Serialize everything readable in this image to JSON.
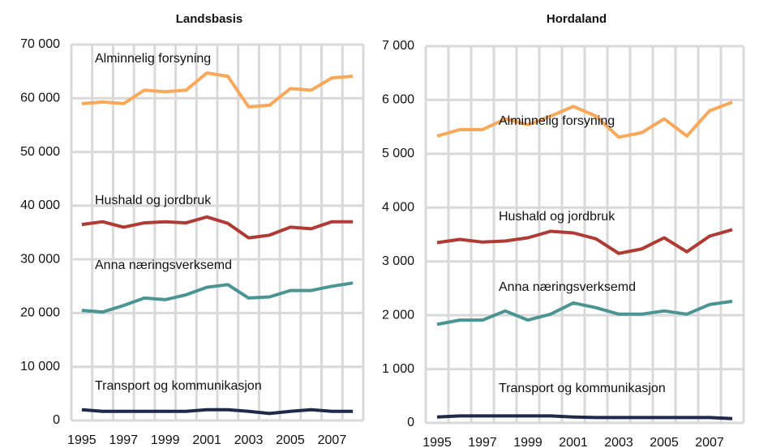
{
  "chart_data": [
    {
      "type": "line",
      "title": "Landsbasis",
      "categories": [
        "1995",
        null,
        "1997",
        null,
        "1999",
        null,
        "2001",
        null,
        "2003",
        null,
        "2005",
        null,
        "2007",
        null
      ],
      "ylim": [
        0,
        70000
      ],
      "yticks": [
        0,
        {
          "value": 10000,
          "label": "10 000"
        },
        {
          "value": 20000,
          "label": "20 000"
        },
        {
          "value": 30000,
          "label": "30 000"
        },
        {
          "value": 40000,
          "label": "40 000"
        },
        {
          "value": 50000,
          "label": "50 000"
        },
        {
          "value": 60000,
          "label": "60 000"
        },
        {
          "value": 70000,
          "label": "70 000"
        }
      ],
      "grid": true,
      "series": [
        {
          "name": "Alminnelig forsyning",
          "color": "#f9a85a",
          "values": [
            59000,
            59300,
            59000,
            61500,
            61200,
            61500,
            64700,
            64100,
            58400,
            58700,
            61800,
            61500,
            63800,
            64100
          ]
        },
        {
          "name": "Hushald og jordbruk",
          "color": "#b03a34",
          "values": [
            36500,
            37000,
            36000,
            36800,
            37000,
            36800,
            37900,
            36700,
            34000,
            34500,
            36000,
            35700,
            37000,
            37000
          ]
        },
        {
          "name": "Anna næringsverksemd",
          "color": "#4a9593",
          "values": [
            20500,
            20200,
            21400,
            22800,
            22500,
            23400,
            24800,
            25300,
            22800,
            23000,
            24200,
            24200,
            25000,
            25600
          ]
        },
        {
          "name": "Transport og kommunikasjon",
          "color": "#1e2a4a",
          "values": [
            2000,
            1700,
            1700,
            1700,
            1700,
            1700,
            2000,
            2000,
            1700,
            1300,
            1700,
            2000,
            1700,
            1700
          ]
        }
      ]
    },
    {
      "type": "line",
      "title": "Hordaland",
      "categories": [
        "1995",
        null,
        "1997",
        null,
        "1999",
        null,
        "2001",
        null,
        "2003",
        null,
        "2005",
        null,
        "2007",
        null
      ],
      "ylim": [
        0,
        7000
      ],
      "yticks": [
        0,
        {
          "value": 1000,
          "label": "1 000"
        },
        {
          "value": 2000,
          "label": "2 000"
        },
        {
          "value": 3000,
          "label": "3 000"
        },
        {
          "value": 4000,
          "label": "4 000"
        },
        {
          "value": 5000,
          "label": "5 000"
        },
        {
          "value": 6000,
          "label": "6 000"
        },
        {
          "value": 7000,
          "label": "7 000"
        }
      ],
      "grid": true,
      "series": [
        {
          "name": "Alminnelig forsyning",
          "color": "#f9a85a",
          "values": [
            5330,
            5450,
            5450,
            5650,
            5540,
            5700,
            5880,
            5700,
            5310,
            5390,
            5650,
            5330,
            5800,
            5960
          ]
        },
        {
          "name": "Hushald og jordbruk",
          "color": "#b03a34",
          "values": [
            3350,
            3410,
            3360,
            3380,
            3440,
            3560,
            3530,
            3420,
            3150,
            3230,
            3440,
            3180,
            3470,
            3590
          ]
        },
        {
          "name": "Anna næringsverksemd",
          "color": "#4a9593",
          "values": [
            1830,
            1910,
            1910,
            2080,
            1910,
            2020,
            2230,
            2140,
            2020,
            2020,
            2080,
            2020,
            2200,
            2260
          ]
        },
        {
          "name": "Transport og kommunikasjon",
          "color": "#1e2a4a",
          "values": [
            110,
            130,
            130,
            130,
            130,
            130,
            110,
            100,
            100,
            100,
            100,
            100,
            100,
            80
          ]
        }
      ]
    }
  ]
}
